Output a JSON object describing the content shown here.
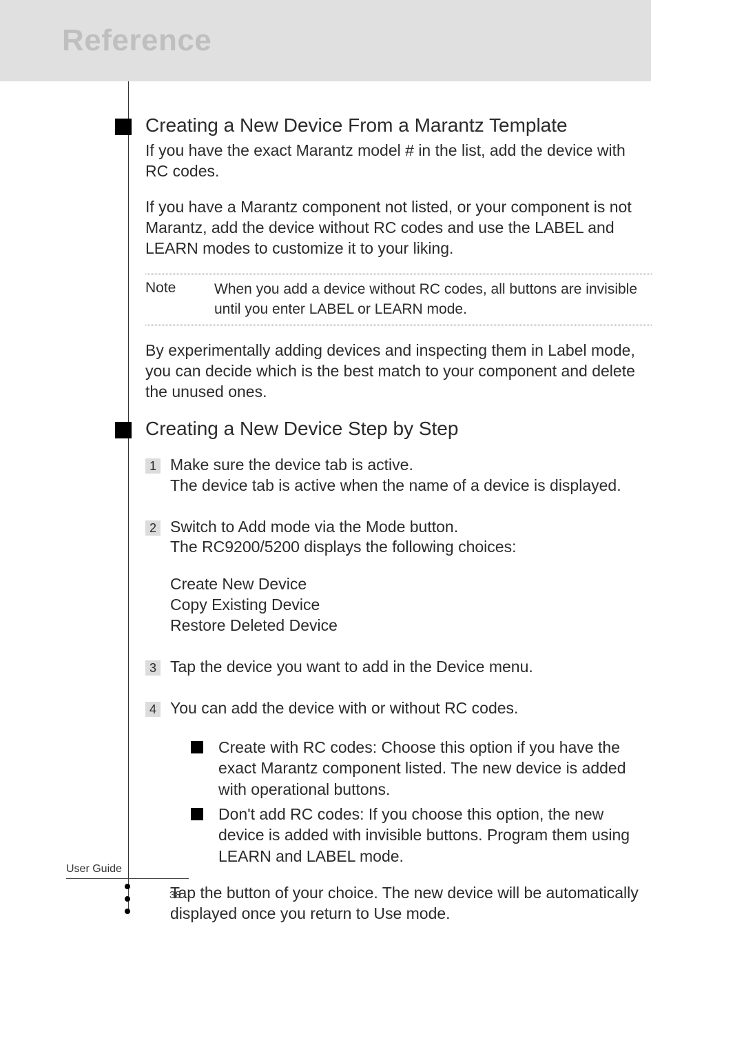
{
  "header": {
    "title": "Reference"
  },
  "section1": {
    "title": "Creating a New Device From a Marantz Template",
    "p1": "If you have the exact Marantz model # in the list, add the device with RC codes.",
    "p2": "If you have a Marantz component not listed, or your component is not Marantz, add the device without RC codes and use the LABEL and LEARN modes to customize it to your liking.",
    "note_label": "Note",
    "note_text": "When you add a device without RC codes, all buttons are invisible until you enter LABEL or LEARN mode.",
    "p3": "By experimentally adding devices and inspecting them in Label mode, you can decide which is the best match to your component and delete the unused ones."
  },
  "section2": {
    "title": "Creating a New Device Step by Step",
    "steps": [
      {
        "num": "1",
        "line1": "Make sure the device tab is active.",
        "line2": "The device tab is active when the name of a device is displayed."
      },
      {
        "num": "2",
        "line1": "Switch to Add mode via the Mode button.",
        "line2": "The RC9200/5200 displays the following choices:",
        "sub": [
          "Create New Device",
          "Copy Existing Device",
          "Restore Deleted Device"
        ]
      },
      {
        "num": "3",
        "line1": "Tap the device you want to add in the Device menu."
      },
      {
        "num": "4",
        "line1": "You can add the device with or without RC codes.",
        "bullets": [
          "Create with RC codes: Choose this option if you have the exact Marantz component listed. The new device is added with operational buttons.",
          "Don't add RC codes: If you choose this option, the new device is added with invisible buttons. Program them using LEARN and LABEL mode."
        ],
        "tail": "Tap the button of your choice. The new device will be automatically displayed once you return to Use mode."
      }
    ]
  },
  "footer": {
    "guide_label": "User Guide",
    "page_number": "38"
  }
}
